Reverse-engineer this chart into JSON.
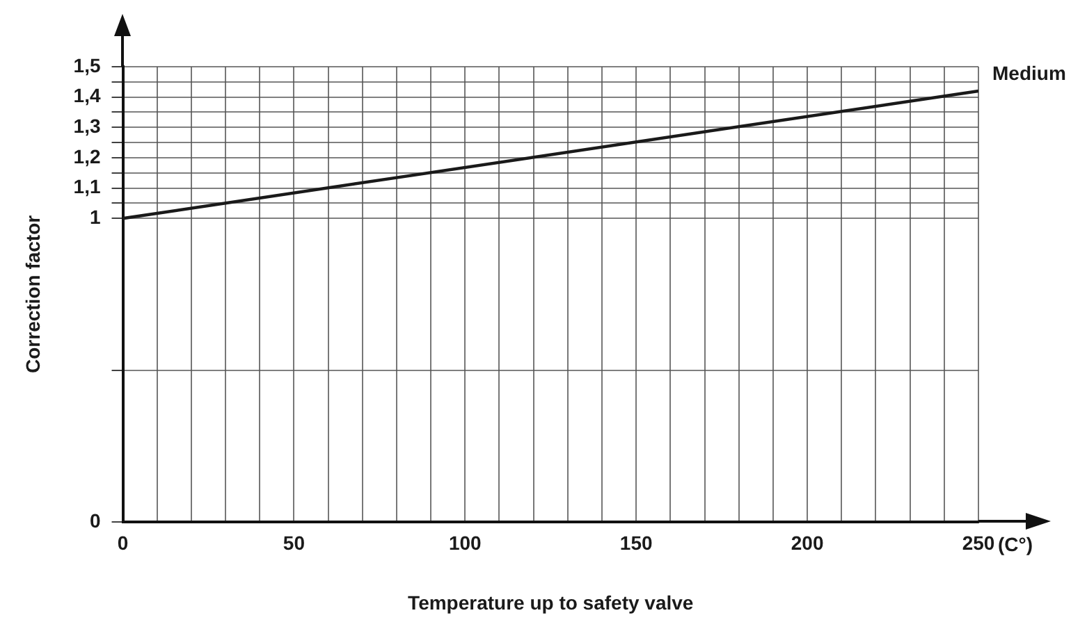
{
  "chart_data": {
    "type": "line",
    "xlabel": "Temperature up to safety valve",
    "ylabel": "Correction factor",
    "annotations": [
      "(C°)"
    ],
    "x": [
      0,
      250
    ],
    "series": [
      {
        "name": "Medium",
        "color": "#1a1a1a",
        "values": [
          1,
          1.42
        ]
      }
    ],
    "xlim": [
      0,
      250
    ],
    "xticks": [
      0,
      {
        "value": 10,
        "label": null
      },
      {
        "value": 20,
        "label": null
      },
      {
        "value": 30,
        "label": null
      },
      {
        "value": 40,
        "label": null
      },
      50,
      {
        "value": 60,
        "label": null
      },
      {
        "value": 70,
        "label": null
      },
      {
        "value": 80,
        "label": null
      },
      {
        "value": 90,
        "label": null
      },
      100,
      {
        "value": 110,
        "label": null
      },
      {
        "value": 120,
        "label": null
      },
      {
        "value": 130,
        "label": null
      },
      {
        "value": 140,
        "label": null
      },
      150,
      {
        "value": 160,
        "label": null
      },
      {
        "value": 170,
        "label": null
      },
      {
        "value": 180,
        "label": null
      },
      {
        "value": 190,
        "label": null
      },
      200,
      {
        "value": 210,
        "label": null
      },
      {
        "value": 220,
        "label": null
      },
      {
        "value": 230,
        "label": null
      },
      {
        "value": 240,
        "label": null
      },
      250
    ],
    "ylim": [
      0,
      1.5
    ],
    "yticks": [
      0,
      {
        "value": 0.5,
        "label": null
      },
      1,
      {
        "value": 1.05,
        "label": null
      },
      {
        "value": 1.1,
        "label": "1,1"
      },
      {
        "value": 1.15,
        "label": null
      },
      {
        "value": 1.2,
        "label": "1,2"
      },
      {
        "value": 1.25,
        "label": null
      },
      {
        "value": 1.3,
        "label": "1,3"
      },
      {
        "value": 1.35,
        "label": null
      },
      {
        "value": 1.4,
        "label": "1,4"
      },
      {
        "value": 1.45,
        "label": null
      },
      {
        "value": 1.5,
        "label": "1,5"
      }
    ],
    "grid": true,
    "legend": false,
    "marker": "none",
    "line_style": "solid"
  }
}
